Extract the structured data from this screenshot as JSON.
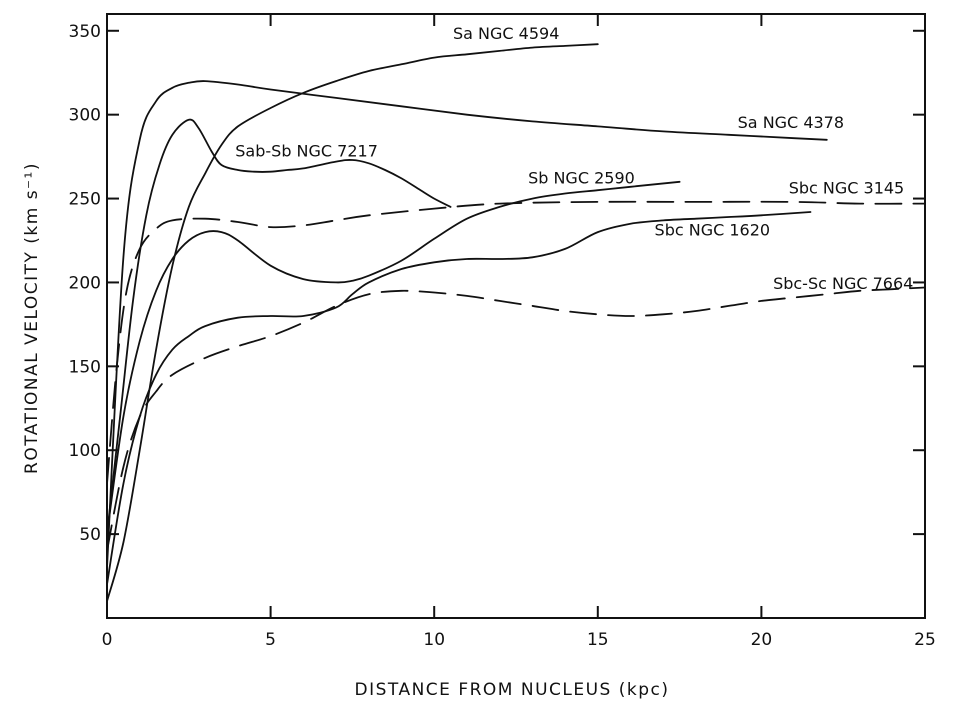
{
  "chart_data": {
    "type": "line",
    "title": "",
    "xlabel": "DISTANCE FROM NUCLEUS (kpc)",
    "ylabel": "ROTATIONAL VELOCITY (km s⁻¹)",
    "xlim": [
      0,
      25
    ],
    "ylim": [
      0,
      360
    ],
    "xticks": [
      0,
      5,
      10,
      15,
      20,
      25
    ],
    "yticks": [
      50,
      100,
      150,
      200,
      250,
      300,
      350
    ],
    "grid": false,
    "series": [
      {
        "name": "Sa NGC 4594",
        "style": "solid",
        "x": [
          0,
          0.5,
          1,
          1.5,
          2,
          2.5,
          3,
          3.5,
          4,
          5,
          6,
          7,
          8,
          9,
          10,
          11,
          12,
          13,
          14,
          15
        ],
        "y": [
          10,
          45,
          100,
          160,
          210,
          245,
          265,
          282,
          293,
          304,
          313,
          320,
          326,
          330,
          334,
          336,
          338,
          340,
          341,
          342
        ]
      },
      {
        "name": "Sa NGC 4378",
        "style": "solid",
        "x": [
          0,
          0.5,
          1,
          1.5,
          2,
          2.5,
          3,
          4,
          5,
          7,
          9,
          11,
          13,
          15,
          17,
          19,
          21,
          22
        ],
        "y": [
          30,
          215,
          285,
          308,
          316,
          319,
          320,
          318,
          315,
          310,
          305,
          300,
          296,
          293,
          290,
          288,
          286,
          285
        ]
      },
      {
        "name": "Sab-Sb NGC 7217",
        "style": "solid",
        "x": [
          0,
          0.4,
          0.8,
          1.2,
          1.6,
          2,
          2.5,
          2.8,
          3.2,
          3.5,
          4,
          4.5,
          5,
          5.5,
          6,
          7,
          7.5,
          8,
          8.5,
          9,
          9.5,
          10,
          10.5
        ],
        "y": [
          50,
          120,
          190,
          240,
          270,
          288,
          297,
          292,
          278,
          270,
          267,
          266,
          266,
          267,
          268,
          272,
          273,
          271,
          267,
          262,
          256,
          250,
          245
        ]
      },
      {
        "name": "Sb NGC 2590",
        "style": "solid",
        "x": [
          0,
          0.5,
          1,
          1.5,
          2,
          2.5,
          3,
          3.5,
          4,
          5,
          6,
          7,
          7.5,
          8,
          9,
          10,
          11,
          12,
          13,
          14,
          15,
          16,
          17.5
        ],
        "y": [
          50,
          120,
          165,
          195,
          214,
          225,
          230,
          230,
          225,
          210,
          202,
          200,
          201,
          204,
          213,
          226,
          238,
          245,
          250,
          253,
          255,
          257,
          260
        ]
      },
      {
        "name": "Sbc NGC 3145",
        "style": "dashed",
        "x": [
          0,
          0.3,
          0.6,
          1,
          1.5,
          2,
          3,
          4,
          5,
          6,
          7,
          8,
          10,
          12,
          15,
          18,
          21,
          23,
          25
        ],
        "y": [
          80,
          150,
          195,
          220,
          232,
          237,
          238,
          236,
          233,
          234,
          237,
          240,
          244,
          247,
          248,
          248,
          248,
          247,
          247
        ]
      },
      {
        "name": "Sbc NGC 1620",
        "style": "solid",
        "x": [
          0,
          0.5,
          1,
          1.5,
          2,
          2.5,
          3,
          4,
          5,
          6,
          7,
          7.5,
          8,
          9,
          10,
          11,
          12,
          13,
          14,
          15,
          16,
          17,
          18,
          19,
          20,
          21.5
        ],
        "y": [
          20,
          80,
          120,
          145,
          160,
          168,
          174,
          179,
          180,
          180,
          185,
          193,
          200,
          208,
          212,
          214,
          214,
          215,
          220,
          230,
          235,
          237,
          238,
          239,
          240,
          242
        ]
      },
      {
        "name": "Sbc-Sc NGC 7664",
        "style": "dashed",
        "x": [
          0,
          0.5,
          1,
          1.5,
          2,
          3,
          4,
          5,
          6,
          7,
          8,
          9,
          10,
          11,
          12,
          13,
          14,
          15,
          16,
          17,
          18,
          19,
          20,
          21,
          22,
          23,
          24,
          25
        ],
        "y": [
          40,
          90,
          120,
          135,
          145,
          155,
          162,
          168,
          176,
          186,
          193,
          195,
          194,
          192,
          189,
          186,
          183,
          181,
          180,
          181,
          183,
          186,
          189,
          191,
          193,
          195,
          196,
          197
        ]
      }
    ]
  }
}
